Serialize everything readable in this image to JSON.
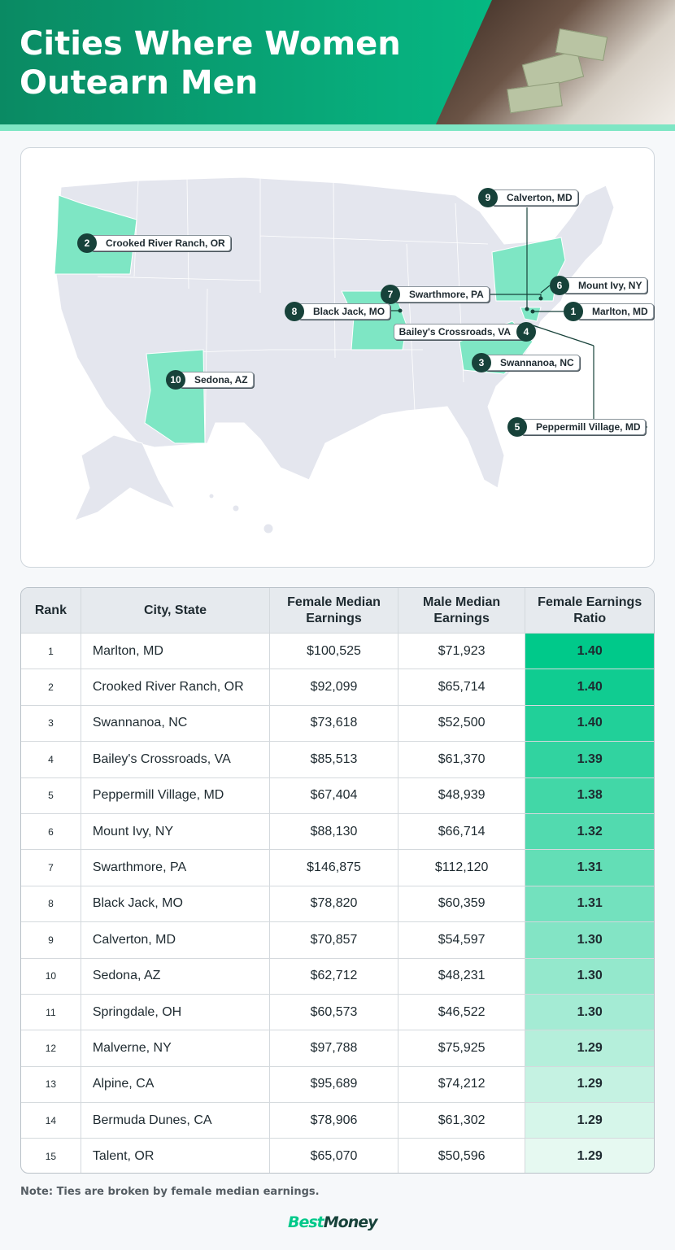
{
  "header": {
    "title": "Cities Where Women Outearn Men"
  },
  "map": {
    "labels": [
      {
        "rank": "1",
        "city": "Marlton, MD"
      },
      {
        "rank": "2",
        "city": "Crooked River Ranch, OR"
      },
      {
        "rank": "3",
        "city": "Swannanoa, NC"
      },
      {
        "rank": "4",
        "city": "Bailey's Crossroads, VA"
      },
      {
        "rank": "5",
        "city": "Peppermill Village, MD"
      },
      {
        "rank": "6",
        "city": "Mount Ivy, NY"
      },
      {
        "rank": "7",
        "city": "Swarthmore, PA"
      },
      {
        "rank": "8",
        "city": "Black Jack, MO"
      },
      {
        "rank": "9",
        "city": "Calverton, MD"
      },
      {
        "rank": "10",
        "city": "Sedona, AZ"
      }
    ],
    "colors": {
      "highlight": "#7ee6c4",
      "state": "#e4e6ee",
      "badge": "#17423a"
    }
  },
  "chart_data": {
    "type": "table",
    "columns": [
      "Rank",
      "City, State",
      "Female Median Earnings",
      "Male Median Earnings",
      "Female Earnings Ratio"
    ],
    "rows": [
      [
        "1",
        "Marlton, MD",
        "$100,525",
        "$71,923",
        "1.40"
      ],
      [
        "2",
        "Crooked River Ranch, OR",
        "$92,099",
        "$65,714",
        "1.40"
      ],
      [
        "3",
        "Swannanoa, NC",
        "$73,618",
        "$52,500",
        "1.40"
      ],
      [
        "4",
        "Bailey's Crossroads, VA",
        "$85,513",
        "$61,370",
        "1.39"
      ],
      [
        "5",
        "Peppermill Village, MD",
        "$67,404",
        "$48,939",
        "1.38"
      ],
      [
        "6",
        "Mount Ivy, NY",
        "$88,130",
        "$66,714",
        "1.32"
      ],
      [
        "7",
        "Swarthmore, PA",
        "$146,875",
        "$112,120",
        "1.31"
      ],
      [
        "8",
        "Black Jack, MO",
        "$78,820",
        "$60,359",
        "1.31"
      ],
      [
        "9",
        "Calverton, MD",
        "$70,857",
        "$54,597",
        "1.30"
      ],
      [
        "10",
        "Sedona, AZ",
        "$62,712",
        "$48,231",
        "1.30"
      ],
      [
        "11",
        "Springdale, OH",
        "$60,573",
        "$46,522",
        "1.30"
      ],
      [
        "12",
        "Malverne, NY",
        "$97,788",
        "$75,925",
        "1.29"
      ],
      [
        "13",
        "Alpine, CA",
        "$95,689",
        "$74,212",
        "1.29"
      ],
      [
        "14",
        "Bermuda Dunes, CA",
        "$78,906",
        "$61,302",
        "1.29"
      ],
      [
        "15",
        "Talent, OR",
        "$65,070",
        "$50,596",
        "1.29"
      ]
    ],
    "ratio_color_scale": [
      "#00c98a",
      "#e6f9f1"
    ]
  },
  "note": "Note: Ties are broken by female median earnings.",
  "logo": {
    "part1": "Best",
    "part2": "Money",
    "color1": "#00c98a",
    "color2": "#17423a"
  }
}
